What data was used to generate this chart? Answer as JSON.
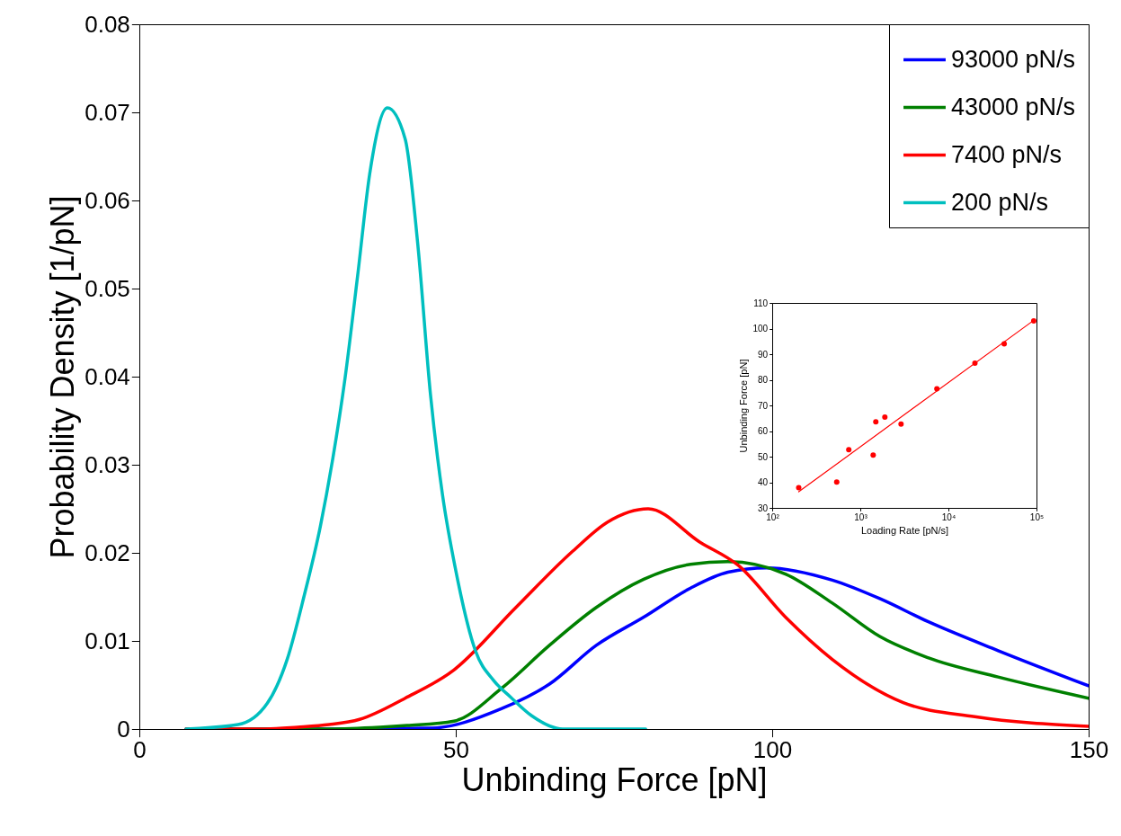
{
  "chart_data": [
    {
      "type": "line",
      "xlabel": "Unbinding Force  [pN]",
      "ylabel": "Probability Density [1/pN]",
      "xlim": [
        0,
        150
      ],
      "xticks": [
        0,
        50,
        100,
        150
      ],
      "ylim": [
        0,
        0.08
      ],
      "yticks": [
        0,
        0.01,
        0.02,
        0.03,
        0.04,
        0.05,
        0.06,
        0.07,
        0.08
      ],
      "legend": "top right",
      "series": [
        {
          "name": "93000 pN/s",
          "color": "#0000ff",
          "x": [
            7.4,
            30,
            46,
            57.2,
            64.8,
            72.2,
            79.7,
            87.1,
            93,
            99.1,
            109.5,
            117,
            124.6,
            135.7,
            150
          ],
          "values": [
            0,
            0,
            0.0001,
            0.0023,
            0.0051,
            0.0095,
            0.0127,
            0.016,
            0.0178,
            0.0183,
            0.0169,
            0.0148,
            0.0122,
            0.0089,
            0.0049
          ]
        },
        {
          "name": "43000 pN/s",
          "color": "#008000",
          "x": [
            7.4,
            30,
            38,
            42.3,
            49.7,
            57.2,
            64.8,
            72.2,
            79.7,
            87.1,
            93,
            102.1,
            109.5,
            117,
            124.6,
            135.7,
            150
          ],
          "values": [
            0,
            0,
            0.0002,
            0.0004,
            0.0009,
            0.0046,
            0.0095,
            0.0138,
            0.017,
            0.0187,
            0.019,
            0.0176,
            0.0143,
            0.0105,
            0.0081,
            0.0059,
            0.0035
          ]
        },
        {
          "name": "7400 pN/s",
          "color": "#ff0000",
          "x": [
            7.4,
            20,
            25,
            30,
            34.8,
            42,
            49.7,
            59.5,
            68.5,
            74,
            80.4,
            88.6,
            94.6,
            102.1,
            109.5,
            120.7,
            132,
            150
          ],
          "values": [
            0,
            0,
            0.0002,
            0.0005,
            0.0011,
            0.0035,
            0.0067,
            0.0138,
            0.0202,
            0.0235,
            0.025,
            0.0212,
            0.0186,
            0.0127,
            0.0079,
            0.003,
            0.0014,
            0.0003
          ]
        },
        {
          "name": "200 pN/s",
          "color": "#00bfbf",
          "x": [
            7.4,
            15.6,
            20.2,
            23.4,
            26,
            28.6,
            30.5,
            32.5,
            34.5,
            36.4,
            39.2,
            42,
            44,
            46,
            47.9,
            50,
            53.1,
            56,
            58.7,
            62,
            66.9,
            80
          ],
          "values": [
            0,
            0.0005,
            0.0029,
            0.008,
            0.015,
            0.023,
            0.0304,
            0.0398,
            0.0515,
            0.063,
            0.0705,
            0.067,
            0.055,
            0.038,
            0.0266,
            0.018,
            0.0089,
            0.0055,
            0.0036,
            0.0015,
            0,
            0
          ]
        }
      ]
    },
    {
      "type": "scatter",
      "xlabel": "Loading Rate [pN/s]",
      "ylabel": "Unbinding Force [pN]",
      "log": "x",
      "xlim": [
        100,
        100000
      ],
      "xticks": [
        {
          "value": 100,
          "label": "10²"
        },
        {
          "value": 1000,
          "label": "10³"
        },
        {
          "value": 10000,
          "label": "10⁴"
        },
        {
          "value": 100000,
          "label": "10⁵"
        }
      ],
      "ylim": [
        30,
        110
      ],
      "yticks": [
        30,
        40,
        50,
        60,
        70,
        80,
        90,
        100,
        110
      ],
      "series": [
        {
          "marker": "circle",
          "color": "#ff0000",
          "x": [
            200,
            540,
            740,
            1400,
            1500,
            1900,
            2900,
            7400,
            20000,
            43000,
            93000
          ],
          "values": [
            37.9,
            40.1,
            52.7,
            50.6,
            63.6,
            65.4,
            62.7,
            76.5,
            86.5,
            94,
            103
          ]
        },
        {
          "type": "line",
          "color": "#ff0000",
          "x": [
            200,
            93000
          ],
          "values": [
            36.3,
            103.2
          ]
        }
      ]
    }
  ]
}
